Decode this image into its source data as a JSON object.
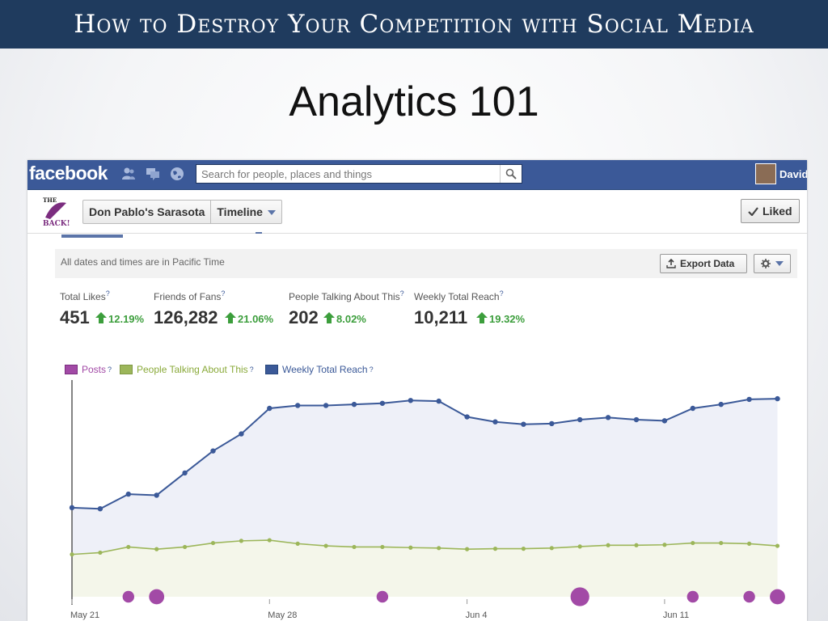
{
  "slide": {
    "banner": "How to Destroy Your Competition with Social Media",
    "title": "Analytics 101"
  },
  "facebook": {
    "logo": "facebook",
    "search_placeholder": "Search for people, places and things",
    "user_name": "David",
    "jewels": [
      "friend-requests-icon",
      "messages-icon",
      "notifications-globe-icon"
    ]
  },
  "page": {
    "name": "Don Pablo's Sarasota",
    "view": "Timeline",
    "liked_label": "Liked"
  },
  "insights": {
    "timezone_note": "All dates and times are in Pacific Time",
    "export_label": "Export Data",
    "metrics": [
      {
        "label": "Total Likes",
        "value": "451",
        "change": "12.19%"
      },
      {
        "label": "Friends of Fans",
        "value": "126,282",
        "change": "21.06%"
      },
      {
        "label": "People Talking About This",
        "value": "202",
        "change": "8.02%"
      },
      {
        "label": "Weekly Total Reach",
        "value": "10,211",
        "change": "19.32%"
      }
    ],
    "legend": [
      {
        "label": "Posts",
        "color": "#a24aa6"
      },
      {
        "label": "People Talking About This",
        "color": "#9cb65a"
      },
      {
        "label": "Weekly Total Reach",
        "color": "#3b5998"
      }
    ]
  },
  "chart_data": {
    "type": "line",
    "x_tick_labels": [
      "May 21",
      "May 28",
      "Jun 4",
      "Jun 11"
    ],
    "x_tick_index": [
      0,
      7,
      14,
      21
    ],
    "ylim": [
      0,
      100
    ],
    "series": [
      {
        "name": "Weekly Total Reach",
        "color": "#3b5998",
        "values": [
          40.8,
          40.3,
          47.0,
          46.5,
          56.7,
          66.8,
          74.6,
          86.3,
          87.6,
          87.6,
          88.1,
          88.6,
          89.9,
          89.6,
          82.4,
          80.1,
          79.0,
          79.3,
          81.1,
          82.1,
          81.1,
          80.6,
          86.3,
          88.1,
          90.4,
          90.7
        ]
      },
      {
        "name": "People Talking About This",
        "color": "#9cb65a",
        "values": [
          19.4,
          20.2,
          22.8,
          21.8,
          22.8,
          24.6,
          25.6,
          25.9,
          24.3,
          23.3,
          22.8,
          22.8,
          22.5,
          22.3,
          21.8,
          22.0,
          22.0,
          22.3,
          23.0,
          23.6,
          23.6,
          23.8,
          24.6,
          24.6,
          24.3,
          23.3
        ]
      },
      {
        "name": "Posts",
        "color": "#a24aa6",
        "type": "bubble",
        "points": [
          {
            "x": 2,
            "size": 1
          },
          {
            "x": 3,
            "size": 2
          },
          {
            "x": 11,
            "size": 1
          },
          {
            "x": 18,
            "size": 3
          },
          {
            "x": 22,
            "size": 1
          },
          {
            "x": 24,
            "size": 1
          },
          {
            "x": 25,
            "size": 2
          }
        ]
      }
    ]
  }
}
